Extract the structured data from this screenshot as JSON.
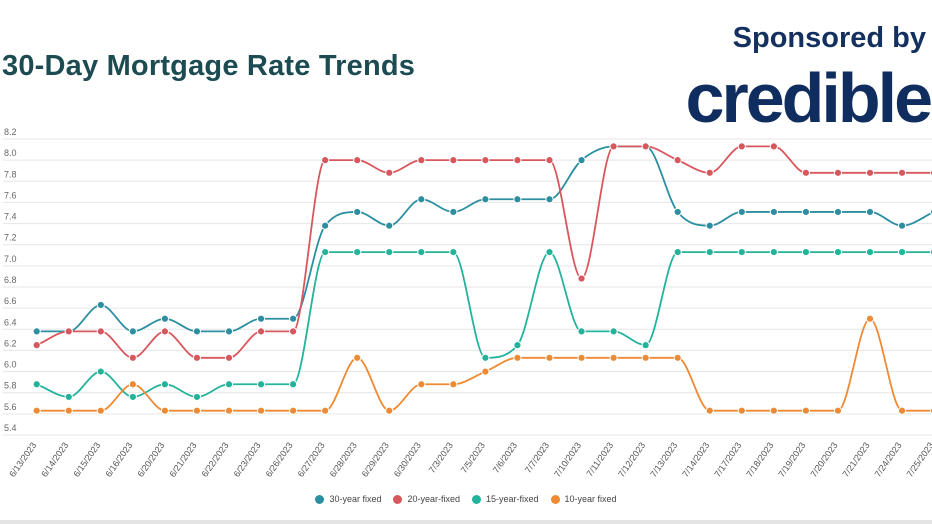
{
  "header": {
    "title": "30-Day Mortgage Rate Trends",
    "sponsor_label": "Sponsored by",
    "sponsor_brand": "credible"
  },
  "colors": {
    "title": "#1d4b52",
    "brand": "#0f2d5f",
    "grid": "#e6e6e6"
  },
  "chart_data": {
    "type": "line",
    "smooth": true,
    "title": "",
    "xlabel": "",
    "ylabel": "",
    "ylim": [
      5.4,
      8.2
    ],
    "yticks": [
      "5.4",
      "5.6",
      "5.8",
      "6.0",
      "6.2",
      "6.4",
      "6.6",
      "6.8",
      "7.0",
      "7.2",
      "7.4",
      "7.6",
      "7.8",
      "8.0",
      "8.2"
    ],
    "grid": true,
    "legend_position": "bottom",
    "categories": [
      "6/13/2023",
      "6/14/2023",
      "6/15/2023",
      "6/16/2023",
      "6/20/2023",
      "6/21/2023",
      "6/22/2023",
      "6/23/2023",
      "6/26/2023",
      "6/27/2023",
      "6/28/2023",
      "6/29/2023",
      "6/30/2023",
      "7/3/2023",
      "7/5/2023",
      "7/6/2023",
      "7/7/2023",
      "7/10/2023",
      "7/11/2023",
      "7/12/2023",
      "7/13/2023",
      "7/14/2023",
      "7/17/2023",
      "7/18/2023",
      "7/19/2023",
      "7/20/2023",
      "7/21/2023",
      "7/24/2023",
      "7/25/2023"
    ],
    "series": [
      {
        "name": "30-year fixed",
        "color": "#2b8fa1",
        "values": [
          6.38,
          6.38,
          6.63,
          6.38,
          6.5,
          6.38,
          6.38,
          6.5,
          6.5,
          7.38,
          7.51,
          7.38,
          7.63,
          7.51,
          7.63,
          7.63,
          7.63,
          8.0,
          8.13,
          8.13,
          7.51,
          7.38,
          7.51,
          7.51,
          7.51,
          7.51,
          7.51,
          7.38,
          7.51
        ]
      },
      {
        "name": "20-year-fixed",
        "color": "#d8575c",
        "values": [
          6.25,
          6.38,
          6.38,
          6.13,
          6.38,
          6.13,
          6.13,
          6.38,
          6.38,
          8.0,
          8.0,
          7.88,
          8.0,
          8.0,
          8.0,
          8.0,
          8.0,
          6.88,
          8.13,
          8.13,
          8.0,
          7.88,
          8.13,
          8.13,
          7.88,
          7.88,
          7.88,
          7.88,
          7.88
        ]
      },
      {
        "name": "15-year-fixed",
        "color": "#23b39b",
        "values": [
          5.88,
          5.76,
          6.0,
          5.76,
          5.88,
          5.76,
          5.88,
          5.88,
          5.88,
          7.13,
          7.13,
          7.13,
          7.13,
          7.13,
          6.13,
          6.25,
          7.13,
          6.38,
          6.38,
          6.25,
          7.13,
          7.13,
          7.13,
          7.13,
          7.13,
          7.13,
          7.13,
          7.13,
          7.13
        ]
      },
      {
        "name": "10-year fixed",
        "color": "#ee8a33",
        "values": [
          5.63,
          5.63,
          5.63,
          5.88,
          5.63,
          5.63,
          5.63,
          5.63,
          5.63,
          5.63,
          6.13,
          5.63,
          5.88,
          5.88,
          6.0,
          6.13,
          6.13,
          6.13,
          6.13,
          6.13,
          6.13,
          5.63,
          5.63,
          5.63,
          5.63,
          5.63,
          6.5,
          5.63,
          5.63
        ]
      }
    ]
  }
}
